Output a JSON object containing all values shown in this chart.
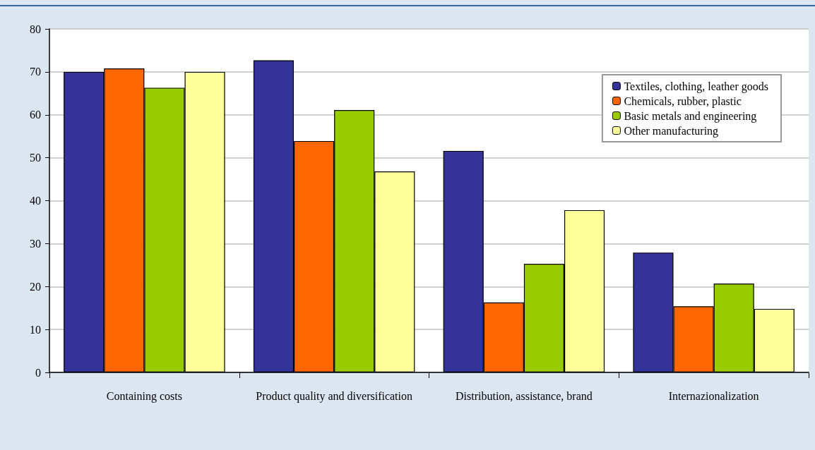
{
  "chart_data": {
    "type": "bar",
    "categories": [
      "Containing costs",
      "Product quality and diversification",
      "Distribution, assistance, brand",
      "Internazionalization"
    ],
    "series": [
      {
        "name": "Textiles, clothing, leather goods",
        "color": "#333399",
        "values": [
          70.0,
          72.7,
          51.6,
          27.9
        ]
      },
      {
        "name": "Chemicals, rubber, plastic",
        "color": "#ff6600",
        "values": [
          70.8,
          53.9,
          16.3,
          15.4
        ]
      },
      {
        "name": "Basic metals and engineering",
        "color": "#99cc00",
        "values": [
          66.3,
          61.1,
          25.3,
          20.7
        ]
      },
      {
        "name": "Other manufacturing",
        "color": "#ffff99",
        "values": [
          70.0,
          46.8,
          37.8,
          14.8
        ]
      }
    ],
    "ylim": [
      0,
      80
    ],
    "yticks": [
      0,
      10,
      20,
      30,
      40,
      50,
      60,
      70,
      80
    ],
    "grid": "y",
    "legend": "top right"
  }
}
